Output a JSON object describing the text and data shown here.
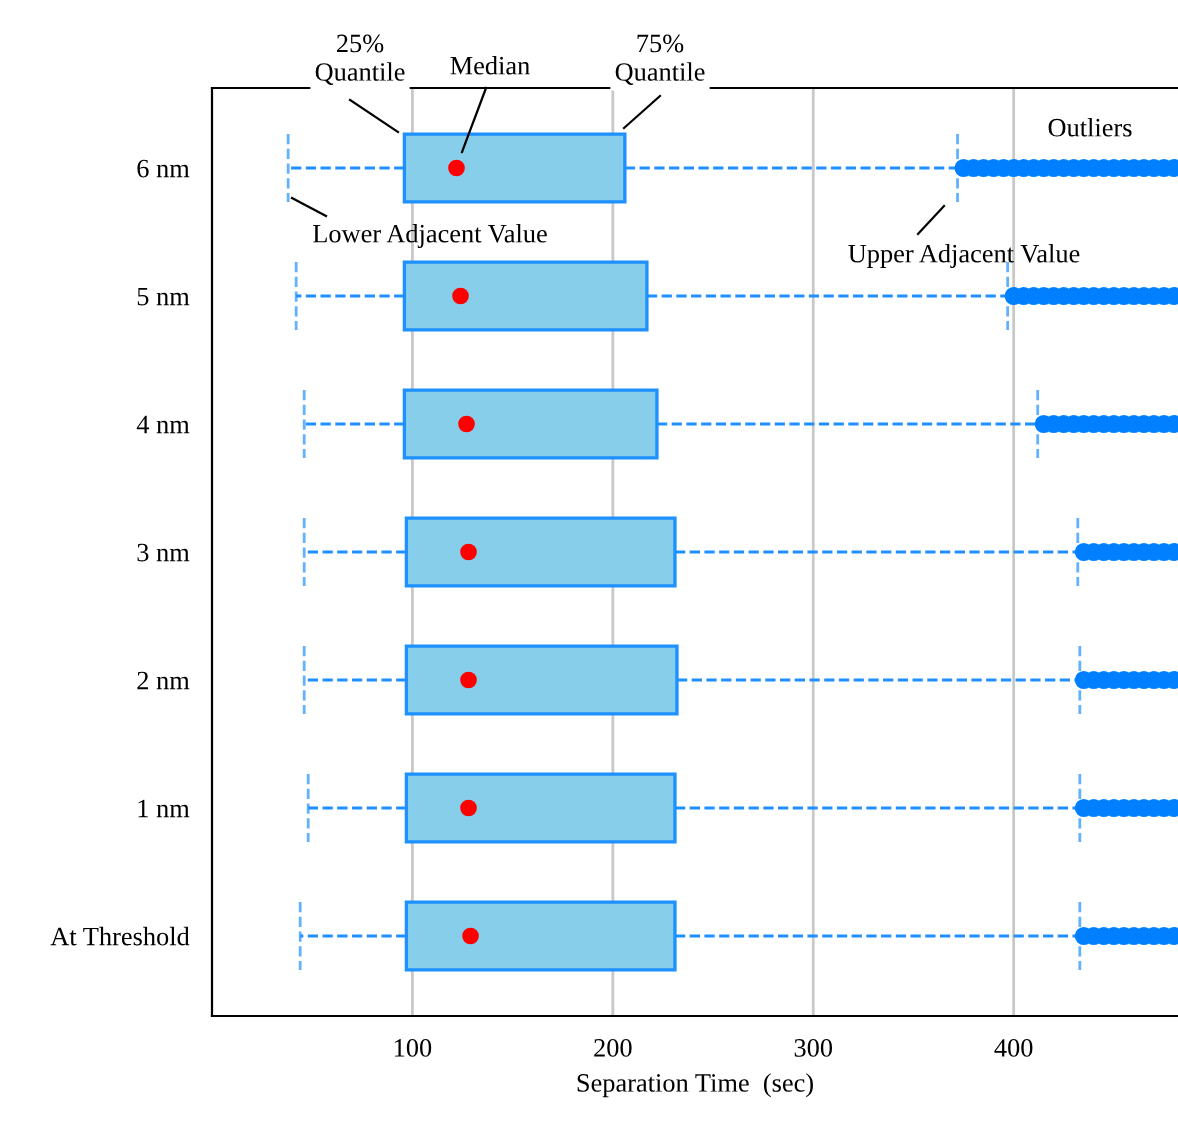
{
  "chart_data": {
    "type": "box",
    "orientation": "horizontal",
    "xlabel": "Separation Time  (sec)",
    "categories": [
      "6 nm",
      "5 nm",
      "4 nm",
      "3 nm",
      "2 nm",
      "1 nm",
      "At Threshold"
    ],
    "boxes": [
      {
        "low": 38,
        "q1": 96,
        "median": 122,
        "q3": 206,
        "high": 372,
        "outliers": [
          375,
          380,
          385,
          390,
          395,
          400,
          405,
          410,
          415,
          420,
          425,
          430,
          435,
          440,
          445,
          450,
          455,
          460,
          465,
          470,
          475,
          480
        ]
      },
      {
        "low": 42,
        "q1": 96,
        "median": 124,
        "q3": 217,
        "high": 397,
        "outliers": [
          400,
          405,
          410,
          415,
          420,
          425,
          430,
          435,
          440,
          445,
          450,
          455,
          460,
          465,
          470,
          475,
          480
        ]
      },
      {
        "low": 46,
        "q1": 96,
        "median": 127,
        "q3": 222,
        "high": 412,
        "outliers": [
          415,
          420,
          425,
          430,
          435,
          440,
          445,
          450,
          455,
          460,
          465,
          470,
          475,
          480
        ]
      },
      {
        "low": 46,
        "q1": 97,
        "median": 128,
        "q3": 231,
        "high": 432,
        "outliers": [
          435,
          440,
          445,
          450,
          455,
          460,
          465,
          470,
          475,
          480
        ]
      },
      {
        "low": 46,
        "q1": 97,
        "median": 128,
        "q3": 232,
        "high": 433,
        "outliers": [
          435,
          440,
          445,
          450,
          455,
          460,
          465,
          470,
          475,
          480
        ]
      },
      {
        "low": 48,
        "q1": 97,
        "median": 128,
        "q3": 231,
        "high": 433,
        "outliers": [
          435,
          440,
          445,
          450,
          455,
          460,
          465,
          470,
          475,
          480
        ]
      },
      {
        "low": 44,
        "q1": 97,
        "median": 129,
        "q3": 231,
        "high": 433,
        "outliers": [
          435,
          440,
          445,
          450,
          455,
          460,
          465,
          470,
          475,
          480
        ]
      }
    ],
    "color": "#87ceeb",
    "xlim": [
      0,
      482
    ],
    "xticks": [
      100,
      200,
      300,
      400
    ],
    "grid": "x",
    "line_style": "dashed",
    "marker": "circle",
    "annotations": [
      "25%\nQuantile",
      "Median",
      "75%\nQuantile",
      "Lower Adjacent Value",
      "Upper Adjacent Value",
      "Outliers"
    ]
  }
}
